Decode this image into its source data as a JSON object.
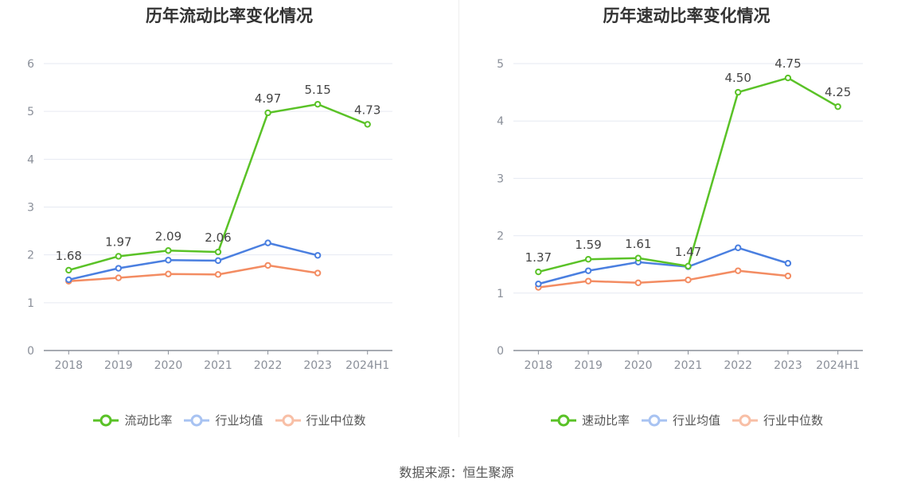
{
  "source": "数据来源：恒生聚源",
  "colors": {
    "main": "#5ac227",
    "avg": "#4a7fe0",
    "median": "#f38c62",
    "grid": "#e6e9f2",
    "axis": "#8a8f99",
    "text": "#8a8f99"
  },
  "chart_data": [
    {
      "type": "line",
      "title": "历年流动比率变化情况",
      "categories": [
        "2018",
        "2019",
        "2020",
        "2021",
        "2022",
        "2023",
        "2024H1"
      ],
      "ylim": [
        0,
        6
      ],
      "yticks": [
        "0",
        "1",
        "2",
        "3",
        "4",
        "5",
        "6"
      ],
      "grid": true,
      "legend_position": "bottom",
      "series": [
        {
          "name": "流动比率",
          "key": "main",
          "values": [
            1.68,
            1.97,
            2.09,
            2.06,
            4.97,
            5.15,
            4.73
          ],
          "labels": [
            "1.68",
            "1.97",
            "2.09",
            "2.06",
            "4.97",
            "5.15",
            "4.73"
          ]
        },
        {
          "name": "行业均值",
          "key": "avg",
          "values": [
            1.48,
            1.72,
            1.89,
            1.88,
            2.25,
            1.99,
            null
          ]
        },
        {
          "name": "行业中位数",
          "key": "median",
          "values": [
            1.45,
            1.52,
            1.6,
            1.59,
            1.78,
            1.62,
            null
          ]
        }
      ]
    },
    {
      "type": "line",
      "title": "历年速动比率变化情况",
      "categories": [
        "2018",
        "2019",
        "2020",
        "2021",
        "2022",
        "2023",
        "2024H1"
      ],
      "ylim": [
        0,
        5
      ],
      "yticks": [
        "0",
        "1",
        "2",
        "3",
        "4",
        "5"
      ],
      "grid": true,
      "legend_position": "bottom",
      "series": [
        {
          "name": "速动比率",
          "key": "main",
          "values": [
            1.37,
            1.59,
            1.61,
            1.47,
            4.5,
            4.75,
            4.25
          ],
          "labels": [
            "1.37",
            "1.59",
            "1.61",
            "1.47",
            "4.50",
            "4.75",
            "4.25"
          ]
        },
        {
          "name": "行业均值",
          "key": "avg",
          "values": [
            1.16,
            1.39,
            1.54,
            1.46,
            1.79,
            1.52,
            null
          ]
        },
        {
          "name": "行业中位数",
          "key": "median",
          "values": [
            1.1,
            1.21,
            1.18,
            1.23,
            1.39,
            1.3,
            null
          ]
        }
      ]
    }
  ]
}
